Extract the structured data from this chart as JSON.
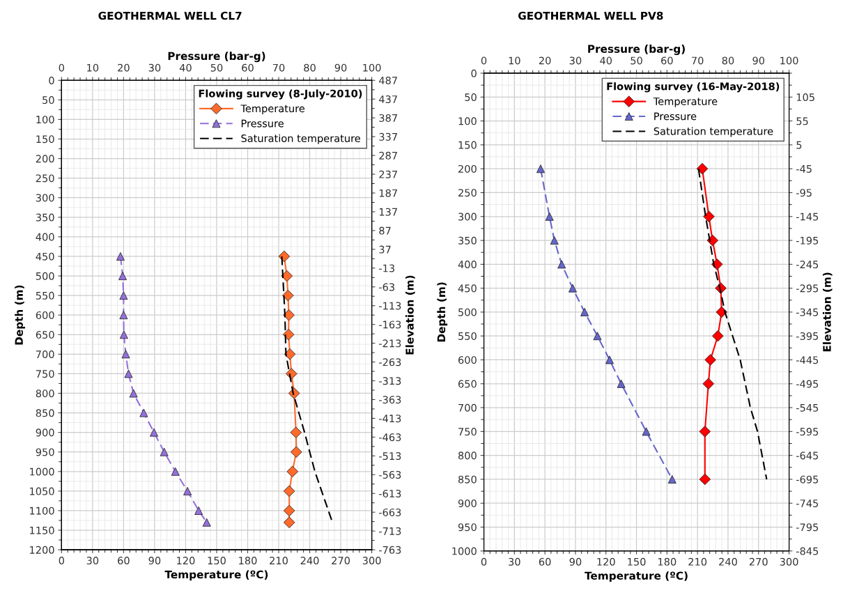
{
  "chart_data": [
    {
      "type": "line",
      "title": "GEOTHERMAL WELL CL7",
      "xlabel": "Temperature (ºC)",
      "x2label": "Pressure (bar-g)",
      "ylabel": "Depth (m)",
      "y2label": "Elevation (m)",
      "legend_title": "Flowing survey (8-July-2010)",
      "legend": "top right",
      "grid": true,
      "xlim": [
        0,
        300
      ],
      "xticks": [
        0,
        30,
        60,
        90,
        120,
        150,
        180,
        210,
        240,
        270,
        300
      ],
      "x2lim": [
        0,
        100
      ],
      "x2ticks": [
        0,
        10,
        20,
        30,
        40,
        50,
        60,
        70,
        80,
        90,
        100
      ],
      "ylim": [
        1200,
        0
      ],
      "yticks": [
        0,
        50,
        100,
        150,
        200,
        250,
        300,
        350,
        400,
        450,
        500,
        550,
        600,
        650,
        700,
        750,
        800,
        850,
        900,
        950,
        1000,
        1050,
        1100,
        1150,
        1200
      ],
      "y2lim": [
        -763,
        487
      ],
      "y2ticks": [
        487,
        437,
        387,
        337,
        287,
        237,
        187,
        137,
        87,
        37,
        -13,
        -63,
        -113,
        -163,
        -213,
        -263,
        -313,
        -363,
        -413,
        -463,
        -513,
        -563,
        -613,
        -663,
        -713,
        -763
      ],
      "series": [
        {
          "name": "Temperature",
          "type": "line",
          "color": "#ff6a2b",
          "line_style": "solid",
          "marker": "diamond",
          "x": [
            215.3,
            217.9,
            219,
            219.8,
            219.5,
            220.8,
            222.3,
            224.9,
            226.7,
            227,
            223.3,
            220.2,
            220.2,
            220.2
          ],
          "values": [
            450,
            500,
            550,
            600,
            650,
            700,
            750,
            800,
            900,
            950,
            1000,
            1050,
            1100,
            1130
          ]
        },
        {
          "name": "Pressure",
          "type": "line",
          "axis": "x2",
          "color": "#9370db",
          "line_style": "dashed",
          "marker": "triangle",
          "x": [
            19.0,
            19.7,
            20.0,
            20.0,
            20.1,
            20.7,
            21.6,
            23.2,
            26.5,
            29.8,
            33.1,
            36.7,
            40.6,
            44.2,
            46.8
          ],
          "values": [
            450,
            500,
            550,
            600,
            650,
            700,
            750,
            800,
            850,
            900,
            950,
            1000,
            1050,
            1100,
            1130
          ]
        },
        {
          "name": "Saturation temperature",
          "type": "line",
          "color": "#000000",
          "line_style": "dashed",
          "marker": "none",
          "x": [
            213,
            216,
            217,
            224,
            235,
            245,
            262
          ],
          "values": [
            450,
            600,
            700,
            800,
            900,
            1000,
            1130
          ]
        }
      ]
    },
    {
      "type": "line",
      "title": "GEOTHERMAL WELL PV8",
      "xlabel": "Temperature (ºC)",
      "x2label": "Pressure (bar-g)",
      "ylabel": "Depth (m)",
      "y2label": "Elevation (m)",
      "legend_title": "Flowing survey (16-May-2018)",
      "legend": "top right",
      "grid": true,
      "xlim": [
        0,
        300
      ],
      "xticks": [
        0,
        30,
        60,
        90,
        120,
        150,
        180,
        210,
        240,
        270,
        300
      ],
      "x2lim": [
        0,
        100
      ],
      "x2ticks": [
        0,
        10,
        20,
        30,
        40,
        50,
        60,
        70,
        80,
        90,
        100
      ],
      "ylim": [
        1000,
        0
      ],
      "yticks": [
        0,
        50,
        100,
        150,
        200,
        250,
        300,
        350,
        400,
        450,
        500,
        550,
        600,
        650,
        700,
        750,
        800,
        850,
        900,
        950,
        1000
      ],
      "y2lim": [
        -845,
        155
      ],
      "y2ticks": [
        105,
        55,
        5,
        -45,
        -95,
        -145,
        -195,
        -245,
        -295,
        -345,
        -395,
        -445,
        -495,
        -545,
        -595,
        -645,
        -695,
        -745,
        -795,
        -845
      ],
      "series": [
        {
          "name": "Temperature",
          "type": "line",
          "color": "#ff0000",
          "line_style": "solid",
          "marker": "diamond",
          "x": [
            214.7,
            221.2,
            224.8,
            229.2,
            232.9,
            233.7,
            230.0,
            222.7,
            220.7,
            217.3,
            217.3
          ],
          "values": [
            200,
            300,
            350,
            400,
            450,
            500,
            550,
            600,
            650,
            750,
            850
          ]
        },
        {
          "name": "Pressure",
          "type": "line",
          "axis": "x2",
          "color": "#6666cc",
          "line_style": "dashed",
          "marker": "triangle",
          "x": [
            18.6,
            21.5,
            23.1,
            25.5,
            29.1,
            33.0,
            37.2,
            41.2,
            45.0,
            53.2,
            61.7
          ],
          "values": [
            200,
            300,
            350,
            400,
            450,
            500,
            550,
            600,
            650,
            750,
            850
          ]
        },
        {
          "name": "Saturation temperature",
          "type": "line",
          "color": "#000000",
          "line_style": "dashed",
          "marker": "none",
          "x": [
            211,
            218,
            226,
            232,
            237,
            252,
            262,
            269,
            278
          ],
          "values": [
            200,
            300,
            400,
            450,
            500,
            600,
            700,
            750,
            850
          ]
        }
      ]
    }
  ]
}
